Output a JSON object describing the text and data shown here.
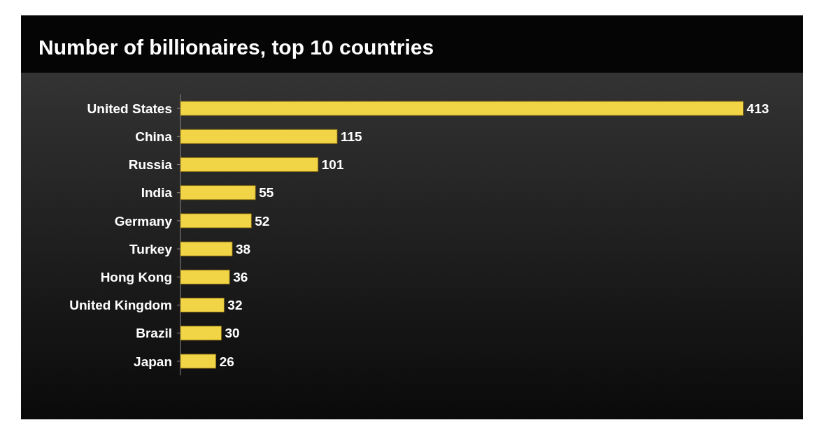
{
  "chart_data": {
    "type": "bar",
    "orientation": "horizontal",
    "title": "Number of billionaires, top 10 countries",
    "categories": [
      "United States",
      "China",
      "Russia",
      "India",
      "Germany",
      "Turkey",
      "Hong Kong",
      "United Kingdom",
      "Brazil",
      "Japan"
    ],
    "values": [
      413,
      115,
      101,
      55,
      52,
      38,
      36,
      32,
      30,
      26
    ],
    "color": "#f2d447",
    "data_labels": true
  }
}
